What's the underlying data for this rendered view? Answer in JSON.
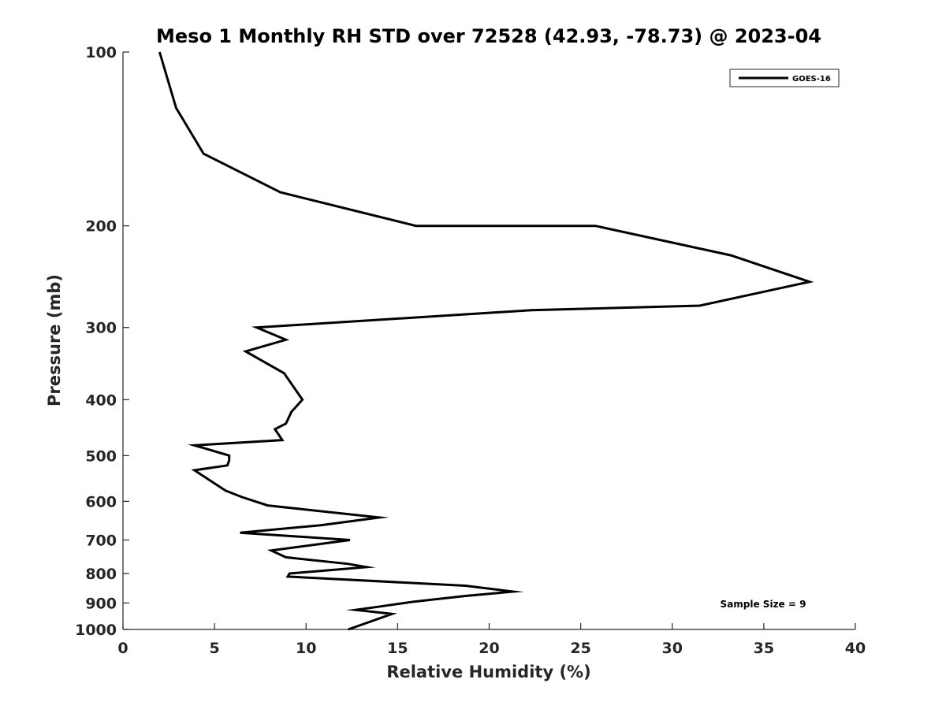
{
  "chart_data": {
    "type": "line",
    "title": "Meso 1 Monthly RH STD over 72528 (42.93, -78.73) @ 2023-04",
    "xlabel": "Relative Humidity (%)",
    "ylabel": "Pressure (mb)",
    "xlim": [
      0,
      40
    ],
    "ylim": [
      100,
      1000
    ],
    "yscale": "log",
    "y_reversed": true,
    "x_ticks": [
      0,
      5,
      10,
      15,
      20,
      25,
      30,
      35,
      40
    ],
    "y_ticks": [
      100,
      200,
      300,
      400,
      500,
      600,
      700,
      800,
      900,
      1000
    ],
    "grid": false,
    "legend_position": "top-right",
    "series": [
      {
        "name": "GOES-16",
        "color": "#000000",
        "points": [
          [
            2.0,
            100
          ],
          [
            2.9,
            125
          ],
          [
            4.4,
            150
          ],
          [
            8.6,
            175
          ],
          [
            16.0,
            200
          ],
          [
            25.8,
            200
          ],
          [
            33.2,
            225
          ],
          [
            37.5,
            250
          ],
          [
            31.5,
            275
          ],
          [
            22.3,
            280
          ],
          [
            7.3,
            300
          ],
          [
            8.9,
            315
          ],
          [
            6.7,
            330
          ],
          [
            8.8,
            360
          ],
          [
            9.8,
            400
          ],
          [
            9.2,
            420
          ],
          [
            8.9,
            440
          ],
          [
            8.3,
            450
          ],
          [
            8.7,
            470
          ],
          [
            3.9,
            480
          ],
          [
            5.8,
            500
          ],
          [
            5.8,
            510
          ],
          [
            5.7,
            520
          ],
          [
            3.9,
            530
          ],
          [
            5.6,
            575
          ],
          [
            6.5,
            590
          ],
          [
            7.9,
            610
          ],
          [
            14.0,
            640
          ],
          [
            10.8,
            660
          ],
          [
            6.4,
            680
          ],
          [
            12.4,
            700
          ],
          [
            8.1,
            730
          ],
          [
            8.9,
            750
          ],
          [
            12.3,
            770
          ],
          [
            13.3,
            780
          ],
          [
            9.1,
            800
          ],
          [
            9.0,
            810
          ],
          [
            18.7,
            840
          ],
          [
            21.3,
            860
          ],
          [
            18.7,
            875
          ],
          [
            15.9,
            895
          ],
          [
            13.8,
            915
          ],
          [
            12.7,
            925
          ],
          [
            14.7,
            940
          ],
          [
            12.3,
            1000
          ]
        ]
      }
    ],
    "annotation": "Sample Size = 9"
  }
}
